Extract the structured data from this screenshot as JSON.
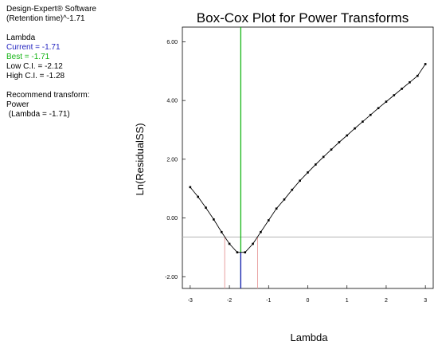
{
  "info": {
    "software": "Design-Expert® Software",
    "response": "(Retention time)^-1.71",
    "lambda_header": "Lambda",
    "current": "Current = -1.71",
    "best": "Best = -1.71",
    "low_ci": "Low C.I. = -2.12",
    "high_ci": "High C.I. = -1.28",
    "recommend": "Recommend transform:",
    "transform": "Power",
    "transform_lambda": " (Lambda = -1.71)",
    "current_color": "#1f1fbf",
    "best_color": "#14b414"
  },
  "chart_data": {
    "type": "line",
    "title": "Box-Cox Plot for Power Transforms",
    "xlabel": "Lambda",
    "ylabel": "Ln(ResidualSS)",
    "xlim": [
      -3.2,
      3.2
    ],
    "ylim": [
      -2.4,
      6.5
    ],
    "x_ticks": [
      -3,
      -2,
      -1,
      0,
      1,
      2,
      3
    ],
    "x_tick_labels": [
      "-3",
      "-2",
      "-1",
      "0",
      "1",
      "2",
      "3"
    ],
    "y_ticks": [
      -2,
      0,
      2,
      4,
      6
    ],
    "y_tick_labels": [
      "-2.00",
      "0.00",
      "2.00",
      "4.00",
      "6.00"
    ],
    "x": [
      -3.0,
      -2.8,
      -2.6,
      -2.4,
      -2.2,
      -2.0,
      -1.8,
      -1.6,
      -1.4,
      -1.2,
      -1.0,
      -0.8,
      -0.6,
      -0.4,
      -0.2,
      0.0,
      0.2,
      0.4,
      0.6,
      0.8,
      1.0,
      1.2,
      1.4,
      1.6,
      1.8,
      2.0,
      2.2,
      2.4,
      2.6,
      2.8,
      3.0
    ],
    "y": [
      1.05,
      0.72,
      0.35,
      -0.05,
      -0.48,
      -0.88,
      -1.17,
      -1.17,
      -0.88,
      -0.48,
      -0.08,
      0.32,
      0.63,
      0.96,
      1.27,
      1.55,
      1.82,
      2.08,
      2.33,
      2.58,
      2.81,
      3.05,
      3.28,
      3.51,
      3.74,
      3.96,
      4.18,
      4.4,
      4.62,
      4.84,
      5.24
    ],
    "best_lambda": -1.71,
    "current_lambda": -1.71,
    "low_ci": -2.12,
    "high_ci": -1.28,
    "ci_threshold": -0.65,
    "colors": {
      "curve": "#000000",
      "best": "#14b414",
      "current": "#1f1fbf",
      "ci": "#e8a0a0",
      "threshold": "#b4b4b4",
      "axis": "#000000"
    }
  }
}
